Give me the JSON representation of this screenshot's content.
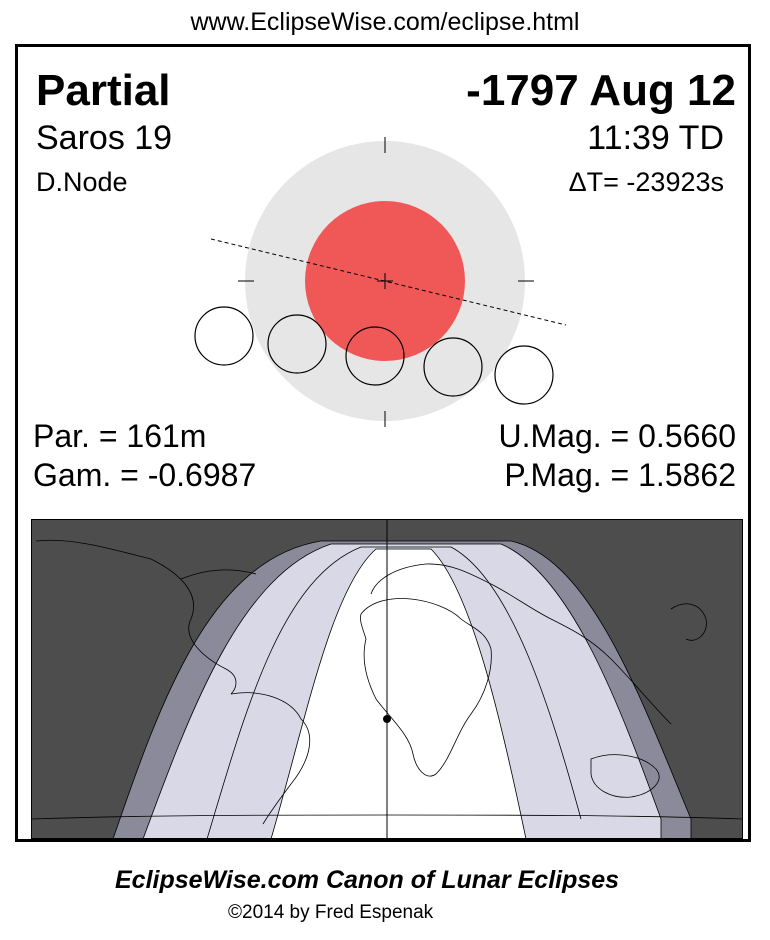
{
  "header": {
    "url": "www.EclipseWise.com/eclipse.html"
  },
  "eclipse": {
    "type": "Partial",
    "date": "-1797 Aug 12",
    "saros": "Saros  19",
    "time": "11:39 TD",
    "node": "D.Node",
    "delta_t": "ΔT= -23923s",
    "partial_duration": "Par. = 161m",
    "gamma": "Gam. = -0.6987",
    "umbral_magnitude": "U.Mag. = 0.5660",
    "penumbral_magnitude": "P.Mag. = 1.5862"
  },
  "colors": {
    "penumbra": "#e6e6e6",
    "umbra": "#f05858",
    "map_night": "#4d4d4d",
    "map_penumbral": "#8a8a9a",
    "map_partial": "#d8d8e6",
    "map_visible": "#ffffff"
  },
  "footer": {
    "title": "EclipseWise.com Canon of Lunar Eclipses",
    "copyright": "©2014 by Fred Espenak"
  }
}
